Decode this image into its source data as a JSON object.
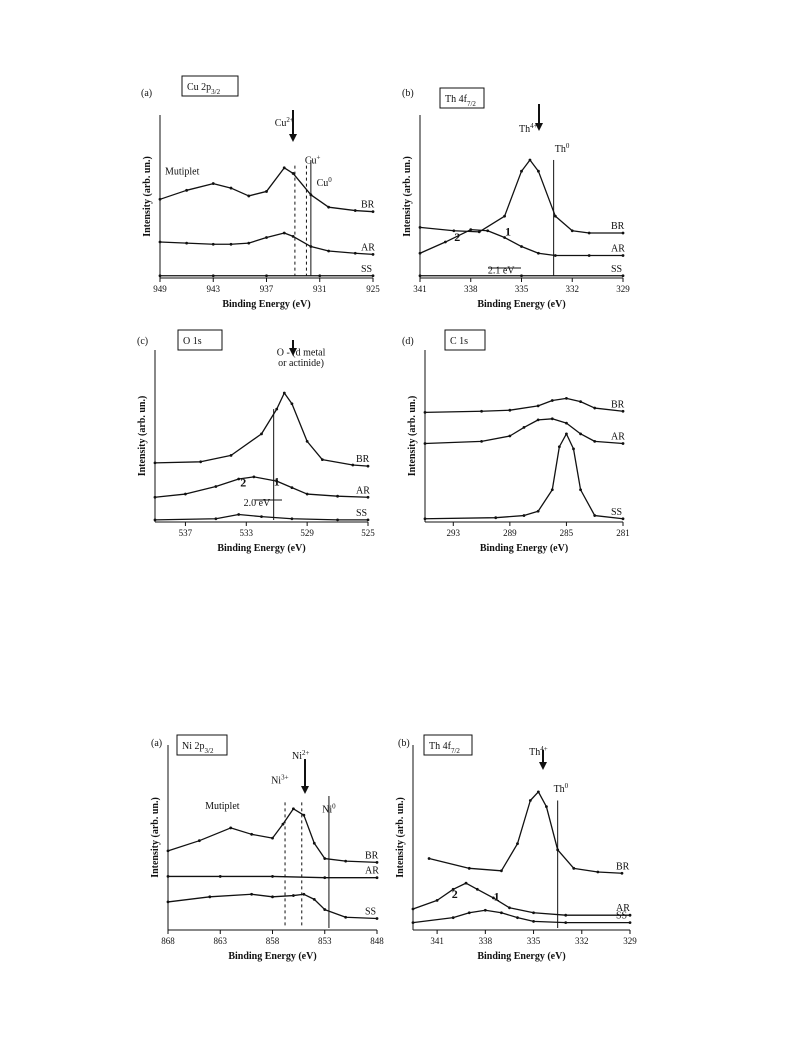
{
  "chart_data": [
    {
      "type": "line",
      "panel_label": "(a)",
      "title_main": "Cu 2p",
      "title_sub": "3/2",
      "xlabel": "Binding Energy (eV)",
      "ylabel": "Intensity (arb. un.)",
      "xlim": [
        949,
        925
      ],
      "x_ticks": [
        "949",
        "943",
        "937",
        "931",
        "925"
      ],
      "series": [
        {
          "name": "BR",
          "x": [
            949,
            946,
            943,
            941,
            939,
            937,
            935,
            934,
            932,
            930,
            927,
            925
          ],
          "y": [
            0.7,
            0.78,
            0.84,
            0.8,
            0.73,
            0.77,
            0.98,
            0.93,
            0.74,
            0.63,
            0.6,
            0.59
          ]
        },
        {
          "name": "AR",
          "x": [
            949,
            946,
            943,
            941,
            939,
            937,
            935,
            934,
            932,
            930,
            927,
            925
          ],
          "y": [
            0.32,
            0.31,
            0.3,
            0.3,
            0.31,
            0.36,
            0.4,
            0.37,
            0.28,
            0.24,
            0.22,
            0.21
          ]
        },
        {
          "name": "SS",
          "x": [
            949,
            943,
            937,
            931,
            925
          ],
          "y": [
            0.02,
            0.02,
            0.02,
            0.02,
            0.02
          ]
        }
      ],
      "annotations": [
        {
          "text": "Mutiplet",
          "x": 946.5,
          "y": 0.92
        },
        {
          "text": "Cu",
          "sup": "2+",
          "x": 935,
          "y": 1.35
        },
        {
          "text": "Cu",
          "sup": "+",
          "x": 931.8,
          "y": 1.02
        },
        {
          "text": "Cu",
          "sup": "0",
          "x": 930.5,
          "y": 0.82
        }
      ],
      "reference_lines": [
        933.8,
        932.5,
        932.0
      ]
    },
    {
      "type": "line",
      "panel_label": "(b)",
      "title_main": "Th 4f",
      "title_sub": "7/2",
      "xlabel": "Binding Energy (eV)",
      "ylabel": "Intensity (arb. un.)",
      "xlim": [
        341,
        329
      ],
      "x_ticks": [
        "341",
        "338",
        "335",
        "332",
        "329"
      ],
      "series": [
        {
          "name": "BR",
          "x": [
            341,
            339,
            337.5,
            336,
            335,
            334.5,
            334,
            333,
            332,
            331,
            329
          ],
          "y": [
            0.45,
            0.42,
            0.41,
            0.55,
            0.95,
            1.05,
            0.95,
            0.55,
            0.42,
            0.4,
            0.4
          ]
        },
        {
          "name": "AR",
          "x": [
            341,
            339.5,
            338,
            337,
            336,
            335,
            334,
            333,
            331,
            329
          ],
          "y": [
            0.22,
            0.32,
            0.43,
            0.42,
            0.36,
            0.28,
            0.22,
            0.2,
            0.2,
            0.2
          ]
        },
        {
          "name": "SS",
          "x": [
            341,
            335,
            329
          ],
          "y": [
            0.02,
            0.02,
            0.02
          ]
        }
      ],
      "annotations": [
        {
          "text": "Th",
          "sup": "4+",
          "x": 334.6,
          "y": 1.3
        },
        {
          "text": "Th",
          "sup": "0",
          "x": 332.6,
          "y": 1.12
        },
        {
          "text": "1",
          "x": 335.8,
          "y": 0.38
        },
        {
          "text": "2",
          "x": 338.8,
          "y": 0.33
        },
        {
          "text": "2.1 eV",
          "x": 336.2,
          "y": 0.04
        }
      ],
      "reference_lines": [
        333.1
      ]
    },
    {
      "type": "line",
      "panel_label": "(c)",
      "title_main": "O 1s",
      "title_sub": "",
      "xlabel": "Binding Energy (eV)",
      "ylabel": "Intensity (arb. un.)",
      "xlim": [
        539,
        525
      ],
      "x_ticks": [
        "537",
        "533",
        "529",
        "525"
      ],
      "series": [
        {
          "name": "BR",
          "x": [
            539,
            536,
            534,
            532,
            531,
            530.5,
            530,
            529,
            528,
            526,
            525
          ],
          "y": [
            0.55,
            0.56,
            0.62,
            0.82,
            1.05,
            1.2,
            1.1,
            0.75,
            0.58,
            0.53,
            0.52
          ]
        },
        {
          "name": "AR",
          "x": [
            539,
            537,
            535,
            533.5,
            532.5,
            531,
            530,
            529,
            527,
            525
          ],
          "y": [
            0.23,
            0.26,
            0.33,
            0.4,
            0.42,
            0.38,
            0.32,
            0.26,
            0.24,
            0.23
          ]
        },
        {
          "name": "SS",
          "x": [
            539,
            535,
            533.5,
            532,
            530,
            527,
            525
          ],
          "y": [
            0.02,
            0.03,
            0.07,
            0.05,
            0.03,
            0.02,
            0.02
          ]
        }
      ],
      "annotations": [
        {
          "text": "O - (d metal",
          "x": 529.4,
          "y": 1.55
        },
        {
          "text": "or actinide)",
          "x": 529.4,
          "y": 1.45
        },
        {
          "text": "2",
          "x": 533.2,
          "y": 0.33
        },
        {
          "text": "1",
          "x": 531,
          "y": 0.34
        },
        {
          "text": "2.0 eV",
          "x": 532.3,
          "y": 0.15
        }
      ],
      "reference_lines": [
        531.2
      ]
    },
    {
      "type": "line",
      "panel_label": "(d)",
      "title_main": "C 1s",
      "title_sub": "",
      "xlabel": "Binding Energy (eV)",
      "ylabel": "Intensity (arb. un.)",
      "xlim": [
        295,
        281
      ],
      "x_ticks": [
        "293",
        "289",
        "285",
        "281"
      ],
      "series": [
        {
          "name": "BR",
          "x": [
            295,
            291,
            289,
            287,
            286,
            285,
            284,
            283,
            281
          ],
          "y": [
            1.02,
            1.03,
            1.04,
            1.08,
            1.13,
            1.15,
            1.12,
            1.06,
            1.03
          ]
        },
        {
          "name": "AR",
          "x": [
            295,
            291,
            289,
            288,
            287,
            286,
            285,
            284,
            283,
            281
          ],
          "y": [
            0.73,
            0.75,
            0.8,
            0.88,
            0.95,
            0.96,
            0.92,
            0.82,
            0.75,
            0.73
          ]
        },
        {
          "name": "SS",
          "x": [
            295,
            290,
            288,
            287,
            286,
            285.5,
            285,
            284.5,
            284,
            283,
            281
          ],
          "y": [
            0.03,
            0.04,
            0.06,
            0.1,
            0.3,
            0.7,
            0.82,
            0.68,
            0.3,
            0.06,
            0.03
          ]
        }
      ],
      "annotations": [],
      "reference_lines": []
    },
    {
      "type": "line",
      "panel_label": "(a)",
      "title_main": "Ni 2p",
      "title_sub": "3/2",
      "xlabel": "Binding Energy (eV)",
      "ylabel": "Intensity (arb. un.)",
      "xlim": [
        868,
        848
      ],
      "x_ticks": [
        "868",
        "863",
        "858",
        "853",
        "848"
      ],
      "series": [
        {
          "name": "BR",
          "x": [
            868,
            865,
            862,
            860,
            858,
            857,
            856,
            855,
            854,
            853,
            851,
            848
          ],
          "y": [
            0.62,
            0.7,
            0.8,
            0.75,
            0.72,
            0.83,
            0.95,
            0.9,
            0.68,
            0.56,
            0.54,
            0.53
          ]
        },
        {
          "name": "AR",
          "x": [
            868,
            863,
            858,
            853,
            848
          ],
          "y": [
            0.42,
            0.42,
            0.42,
            0.41,
            0.41
          ]
        },
        {
          "name": "SS",
          "x": [
            868,
            864,
            860,
            858,
            856,
            855,
            854,
            853,
            851,
            848
          ],
          "y": [
            0.22,
            0.26,
            0.28,
            0.26,
            0.27,
            0.28,
            0.24,
            0.16,
            0.1,
            0.09
          ]
        }
      ],
      "annotations": [
        {
          "text": "Mutiplet",
          "x": 862.8,
          "y": 0.95
        },
        {
          "text": "Ni",
          "sup": "3+",
          "x": 857.3,
          "y": 1.15
        },
        {
          "text": "Ni",
          "sup": "2+",
          "x": 855.3,
          "y": 1.34
        },
        {
          "text": "Ni",
          "sup": "0",
          "x": 852.6,
          "y": 0.92
        }
      ],
      "reference_lines": [
        856.8,
        855.2,
        852.6
      ]
    },
    {
      "type": "line",
      "panel_label": "(b)",
      "title_main": "Th 4f",
      "title_sub": "7/2",
      "xlabel": "Binding Energy (eV)",
      "ylabel": "Intensity (arb. un.)",
      "xlim": [
        342.5,
        329
      ],
      "x_ticks": [
        "341",
        "338",
        "335",
        "332",
        "329"
      ],
      "series": [
        {
          "name": "BR",
          "x": [
            341.5,
            339,
            337,
            336,
            335.2,
            334.7,
            334.2,
            333.5,
            332.5,
            331,
            329.5
          ],
          "y": [
            0.58,
            0.5,
            0.48,
            0.7,
            1.05,
            1.12,
            1.0,
            0.65,
            0.5,
            0.47,
            0.46
          ]
        },
        {
          "name": "AR",
          "x": [
            342.5,
            341,
            340,
            339.2,
            338.5,
            337.5,
            336.5,
            335,
            333,
            329
          ],
          "y": [
            0.17,
            0.24,
            0.33,
            0.38,
            0.33,
            0.26,
            0.18,
            0.14,
            0.12,
            0.12
          ]
        },
        {
          "name": "SS",
          "x": [
            342.5,
            340,
            339,
            338,
            337,
            336,
            335,
            333,
            329
          ],
          "y": [
            0.06,
            0.1,
            0.14,
            0.16,
            0.14,
            0.1,
            0.07,
            0.06,
            0.06
          ]
        }
      ],
      "annotations": [
        {
          "text": "Th",
          "sup": "4+",
          "x": 334.7,
          "y": 1.42
        },
        {
          "text": "Th",
          "sup": "0",
          "x": 333.3,
          "y": 1.12
        },
        {
          "text": "2",
          "x": 339.9,
          "y": 0.26
        },
        {
          "text": "1",
          "x": 337.3,
          "y": 0.24
        }
      ],
      "reference_lines": [
        333.5
      ]
    }
  ]
}
